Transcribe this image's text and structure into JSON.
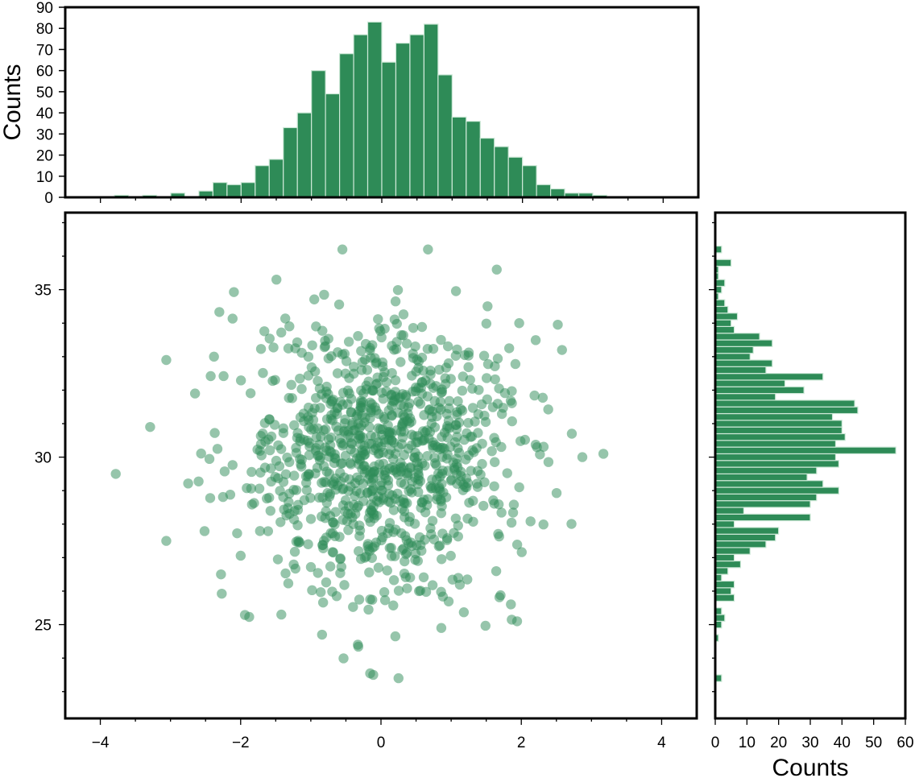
{
  "colors": {
    "bar": "#2e8b57",
    "bar_edge": "#cde8d7",
    "point": "#2e8b57",
    "frame": "#000000"
  },
  "chart_data": [
    {
      "id": "top_histogram",
      "type": "bar",
      "xlabel": "",
      "ylabel": "Counts",
      "xlim": [
        -4.5,
        4.5
      ],
      "ylim": [
        0,
        90
      ],
      "yticks": [
        0,
        10,
        20,
        30,
        40,
        50,
        60,
        70,
        80,
        90
      ],
      "bin_edges": [
        -3.8,
        -3.6,
        -3.4,
        -3.2,
        -3.0,
        -2.8,
        -2.6,
        -2.4,
        -2.2,
        -2.0,
        -1.8,
        -1.6,
        -1.4,
        -1.2,
        -1.0,
        -0.8,
        -0.6,
        -0.4,
        -0.2,
        0.0,
        0.2,
        0.4,
        0.6,
        0.8,
        1.0,
        1.2,
        1.4,
        1.6,
        1.8,
        2.0,
        2.2,
        2.4,
        2.6,
        2.8,
        3.0,
        3.2
      ],
      "counts": [
        1,
        0,
        1,
        0,
        2,
        0,
        3,
        7,
        6,
        7,
        15,
        18,
        33,
        40,
        60,
        49,
        68,
        77,
        83,
        64,
        73,
        77,
        82,
        58,
        38,
        36,
        28,
        24,
        19,
        15,
        6,
        4,
        2,
        2,
        1
      ]
    },
    {
      "id": "scatter",
      "type": "scatter",
      "xlim": [
        -4.5,
        4.5
      ],
      "ylim": [
        22.2,
        37.3
      ],
      "xticks": [
        -4,
        -2,
        0,
        2,
        4
      ],
      "xticklabels": [
        "−4",
        "−2",
        "0",
        "2",
        "4"
      ],
      "yticks": [
        25,
        30,
        35
      ],
      "sample_points": [
        [
          -3.78,
          29.5
        ],
        [
          -3.29,
          30.9
        ],
        [
          -3.06,
          32.9
        ],
        [
          -3.06,
          27.5
        ],
        [
          -2.28,
          26.5
        ],
        [
          -2.65,
          31.9
        ],
        [
          -2.38,
          33.0
        ],
        [
          -1.49,
          35.3
        ],
        [
          -0.55,
          36.2
        ],
        [
          0.67,
          36.2
        ],
        [
          0.86,
          24.9
        ],
        [
          1.94,
          25.1
        ],
        [
          2.87,
          30.0
        ],
        [
          3.17,
          30.1
        ],
        [
          2.72,
          30.7
        ],
        [
          -0.11,
          23.5
        ],
        [
          0.25,
          23.4
        ],
        [
          -0.33,
          24.4
        ],
        [
          -0.84,
          24.7
        ],
        [
          -1.42,
          25.3
        ],
        [
          2.58,
          33.2
        ],
        [
          1.65,
          35.6
        ],
        [
          1.97,
          34.0
        ],
        [
          -0.78,
          27.6
        ],
        [
          0.42,
          29.7
        ],
        [
          -0.25,
          31.9
        ],
        [
          0.61,
          30.5
        ],
        [
          -0.41,
          28.2
        ],
        [
          1.22,
          29.1
        ],
        [
          -1.03,
          31.1
        ]
      ]
    },
    {
      "id": "right_histogram",
      "type": "bar",
      "orientation": "horizontal",
      "xlabel": "Counts",
      "ylabel": "",
      "xlim": [
        0,
        60
      ],
      "xticks": [
        0,
        10,
        20,
        30,
        40,
        50,
        60
      ],
      "ylim": [
        22.2,
        37.3
      ],
      "bin_edges": [
        23.3,
        23.5,
        23.7,
        23.9,
        24.1,
        24.3,
        24.5,
        24.7,
        24.9,
        25.1,
        25.3,
        25.5,
        25.7,
        25.9,
        26.1,
        26.3,
        26.5,
        26.7,
        26.9,
        27.1,
        27.3,
        27.5,
        27.7,
        27.9,
        28.1,
        28.3,
        28.5,
        28.7,
        28.9,
        29.1,
        29.3,
        29.5,
        29.7,
        29.9,
        30.1,
        30.3,
        30.5,
        30.7,
        30.9,
        31.1,
        31.3,
        31.5,
        31.7,
        31.9,
        32.1,
        32.3,
        32.5,
        32.7,
        32.9,
        33.1,
        33.3,
        33.5,
        33.7,
        33.9,
        34.1,
        34.3,
        34.5,
        34.7,
        34.9,
        35.1,
        35.3,
        35.5,
        35.7,
        35.9,
        36.1,
        36.3
      ],
      "counts": [
        2,
        0,
        0,
        0,
        0,
        0,
        1,
        0,
        2,
        3,
        2,
        0,
        6,
        5,
        6,
        2,
        4,
        8,
        6,
        11,
        16,
        19,
        20,
        6,
        30,
        9,
        30,
        32,
        39,
        34,
        29,
        32,
        39,
        38,
        57,
        38,
        41,
        40,
        40,
        37,
        45,
        44,
        19,
        28,
        22,
        34,
        16,
        18,
        11,
        12,
        18,
        14,
        6,
        5,
        7,
        4,
        3,
        1,
        2,
        3,
        1,
        1,
        5,
        0,
        2
      ]
    }
  ]
}
